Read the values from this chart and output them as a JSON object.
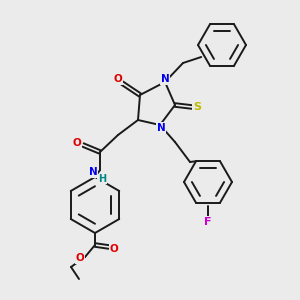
{
  "bg_color": "#ebebeb",
  "bond_color": "#1a1a1a",
  "atom_colors": {
    "N": "#0000ee",
    "O": "#dd0000",
    "S": "#bbbb00",
    "F": "#cc00cc",
    "H": "#008888",
    "C": "#1a1a1a"
  },
  "lw": 1.4,
  "ring_lw": 1.4
}
